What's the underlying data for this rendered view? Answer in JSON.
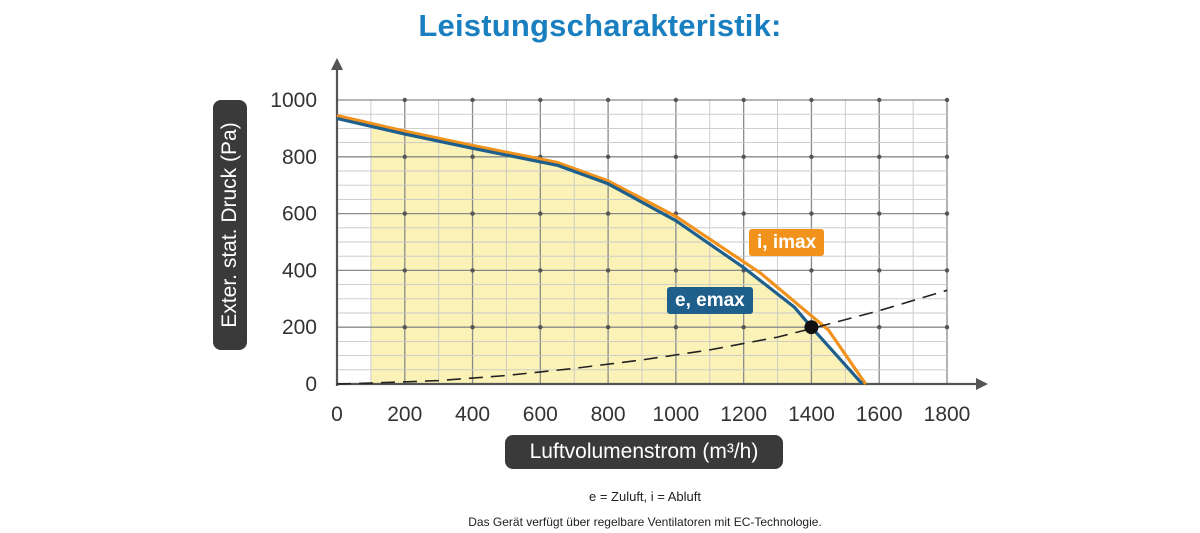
{
  "chart_data": {
    "type": "line",
    "title": "Leistungscharakteristik:",
    "xlabel": "Luftvolumenstrom (m³/h)",
    "ylabel": "Exter. stat. Druck (Pa)",
    "xlim": [
      0,
      1800
    ],
    "ylim": [
      0,
      1000
    ],
    "x_ticks": [
      "0",
      "200",
      "400",
      "600",
      "800",
      "1000",
      "1200",
      "1400",
      "1600",
      "1800"
    ],
    "y_ticks": [
      "0",
      "200",
      "400",
      "600",
      "800",
      "1000"
    ],
    "grid": true,
    "series": [
      {
        "name": "i, imax",
        "color": "#f0921b",
        "x": [
          0,
          200,
          400,
          650,
          800,
          1000,
          1250,
          1400,
          1450,
          1560
        ],
        "y": [
          945,
          890,
          840,
          780,
          715,
          590,
          390,
          240,
          190,
          0
        ]
      },
      {
        "name": "e, emax",
        "color": "#1e5f8c",
        "x": [
          0,
          200,
          400,
          650,
          800,
          1000,
          1200,
          1350,
          1400,
          1430,
          1550
        ],
        "y": [
          935,
          880,
          830,
          770,
          705,
          575,
          410,
          270,
          200,
          160,
          0
        ]
      },
      {
        "name": "",
        "style": "dashed",
        "color": "#222222",
        "x": [
          0,
          100,
          300,
          500,
          700,
          900,
          1100,
          1300,
          1400,
          1600,
          1800
        ],
        "y": [
          0,
          3,
          12,
          30,
          55,
          85,
          120,
          165,
          195,
          258,
          330
        ]
      }
    ],
    "operating_point": {
      "x": 1400,
      "y": 200
    },
    "shaded_region": {
      "x_start": 100,
      "color": "#fbf2b8"
    }
  },
  "notes": {
    "legend": "e = Zuluft, i = Abluft",
    "description": "Das Gerät verfügt über regelbare Ventilatoren mit EC-Technologie."
  }
}
